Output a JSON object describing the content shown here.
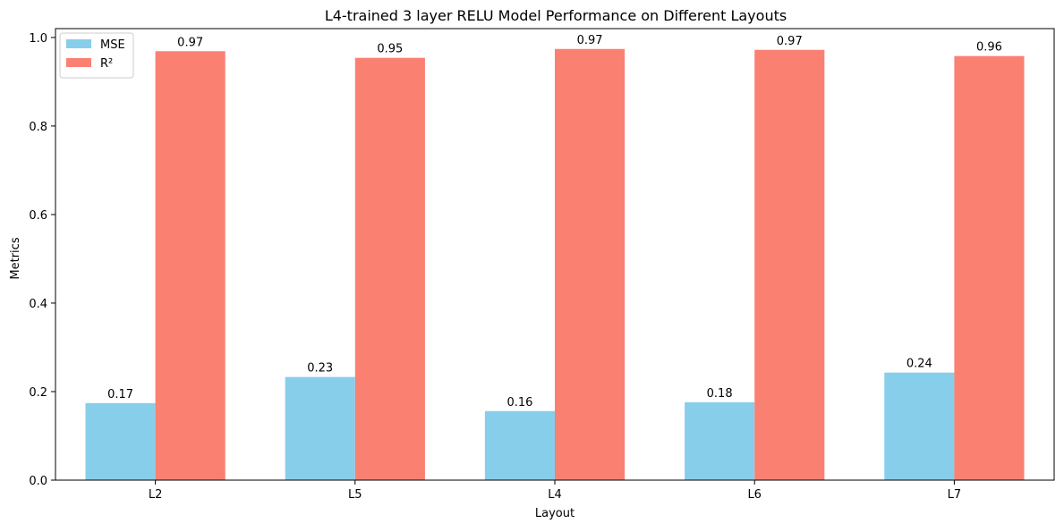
{
  "chart_data": {
    "type": "bar",
    "title": "L4-trained 3 layer RELU Model Performance on Different Layouts",
    "xlabel": "Layout",
    "ylabel": "Metrics",
    "categories": [
      "L2",
      "L5",
      "L4",
      "L6",
      "L7"
    ],
    "series": [
      {
        "name": "MSE",
        "color": "#87ceeb",
        "values": [
          0.174,
          0.233,
          0.156,
          0.176,
          0.243
        ],
        "labels": [
          "0.17",
          "0.23",
          "0.16",
          "0.18",
          "0.24"
        ]
      },
      {
        "name": "R²",
        "color": "#fa8072",
        "values": [
          0.969,
          0.954,
          0.974,
          0.972,
          0.958
        ],
        "labels": [
          "0.97",
          "0.95",
          "0.97",
          "0.97",
          "0.96"
        ]
      }
    ],
    "ylim": [
      0,
      1.02
    ],
    "yticks": [
      0.0,
      0.2,
      0.4,
      0.6,
      0.8,
      1.0
    ],
    "ytick_labels": [
      "0.0",
      "0.2",
      "0.4",
      "0.6",
      "0.8",
      "1.0"
    ],
    "grid": false,
    "legend_position": "upper-left"
  }
}
